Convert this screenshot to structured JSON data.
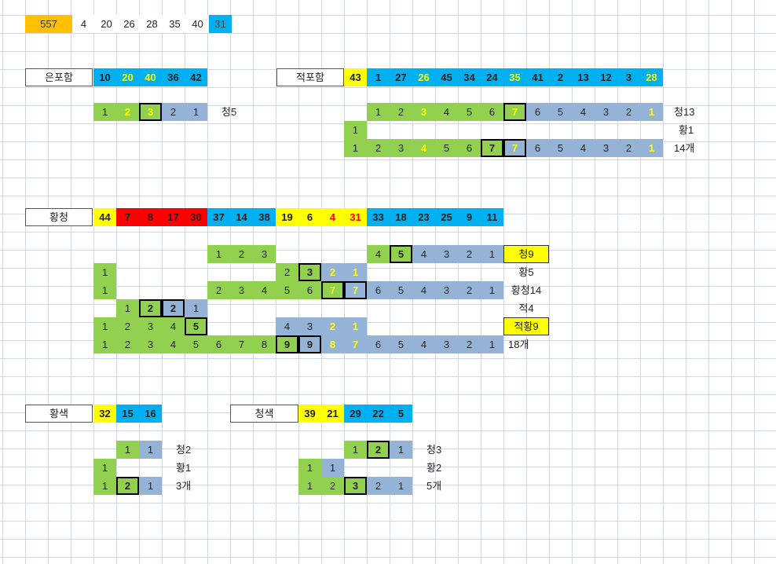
{
  "top_row": {
    "draw": "557",
    "numbers": [
      "4",
      "20",
      "26",
      "28",
      "35",
      "40"
    ],
    "bonus": "31"
  },
  "section_eun": {
    "label": "은포함",
    "numbers": [
      "10",
      "20",
      "40",
      "36",
      "42"
    ],
    "pattern": [
      "1",
      "2",
      "3",
      "2",
      "1"
    ],
    "note": "청5"
  },
  "section_jeok": {
    "label": "적포함",
    "numbers": [
      "43",
      "1",
      "27",
      "26",
      "45",
      "34",
      "24",
      "35",
      "41",
      "2",
      "13",
      "12",
      "3",
      "28"
    ],
    "row1": [
      "1",
      "2",
      "3",
      "4",
      "5",
      "6",
      "7",
      "6",
      "5",
      "4",
      "3",
      "2",
      "1"
    ],
    "row1_note": "청13",
    "row2": [
      "1"
    ],
    "row2_note": "황1",
    "row3": [
      "1",
      "2",
      "3",
      "4",
      "5",
      "6",
      "7",
      "7",
      "6",
      "5",
      "4",
      "3",
      "2",
      "1"
    ],
    "row3_note": "14개"
  },
  "section_hwangcheong": {
    "label": "황청",
    "numbers": [
      "44",
      "7",
      "8",
      "17",
      "30",
      "37",
      "14",
      "38",
      "19",
      "6",
      "4",
      "31",
      "33",
      "18",
      "23",
      "25",
      "9",
      "11"
    ],
    "row1": [
      "1",
      "2",
      "3",
      "4",
      "5",
      "4",
      "3",
      "2",
      "1"
    ],
    "row1_note": "청9",
    "row2": [
      "1",
      "2",
      "3",
      "2",
      "1"
    ],
    "row2_note": "황5",
    "row3": [
      "1",
      "2",
      "3",
      "4",
      "5",
      "6",
      "7",
      "7",
      "6",
      "5",
      "4",
      "3",
      "2",
      "1"
    ],
    "row3_note": "황청14",
    "row4": [
      "1",
      "2",
      "2",
      "1"
    ],
    "row4_note": "적4",
    "row5": [
      "1",
      "2",
      "3",
      "4",
      "5",
      "4",
      "3",
      "2",
      "1"
    ],
    "row5_note": "적황9",
    "row6": [
      "1",
      "2",
      "3",
      "4",
      "5",
      "6",
      "7",
      "8",
      "9",
      "9",
      "8",
      "7",
      "6",
      "5",
      "4",
      "3",
      "2",
      "1"
    ],
    "row6_note": "18개"
  },
  "section_hwangsaek": {
    "label": "황색",
    "numbers": [
      "32",
      "15",
      "16"
    ],
    "row1": [
      "1",
      "1"
    ],
    "row1_note": "청2",
    "row2": [
      "1"
    ],
    "row2_note": "황1",
    "row3": [
      "1",
      "2",
      "1"
    ],
    "row3_note": "3개"
  },
  "section_cheongsaek": {
    "label": "청색",
    "numbers": [
      "39",
      "21",
      "29",
      "22",
      "5"
    ],
    "row1": [
      "1",
      "2",
      "1"
    ],
    "row1_note": "청3",
    "row2": [
      "1",
      "1"
    ],
    "row2_note": "황2",
    "row3": [
      "1",
      "2",
      "3",
      "2",
      "1"
    ],
    "row3_note": "5개"
  },
  "colors": {
    "grid_line": "#d0d7e5",
    "green": "#92d050",
    "steel_blue": "#95b3d7",
    "cyan_blue": "#00b0f0",
    "yellow": "#ffff00",
    "red": "#ff0000",
    "orange": "#ffc000"
  }
}
